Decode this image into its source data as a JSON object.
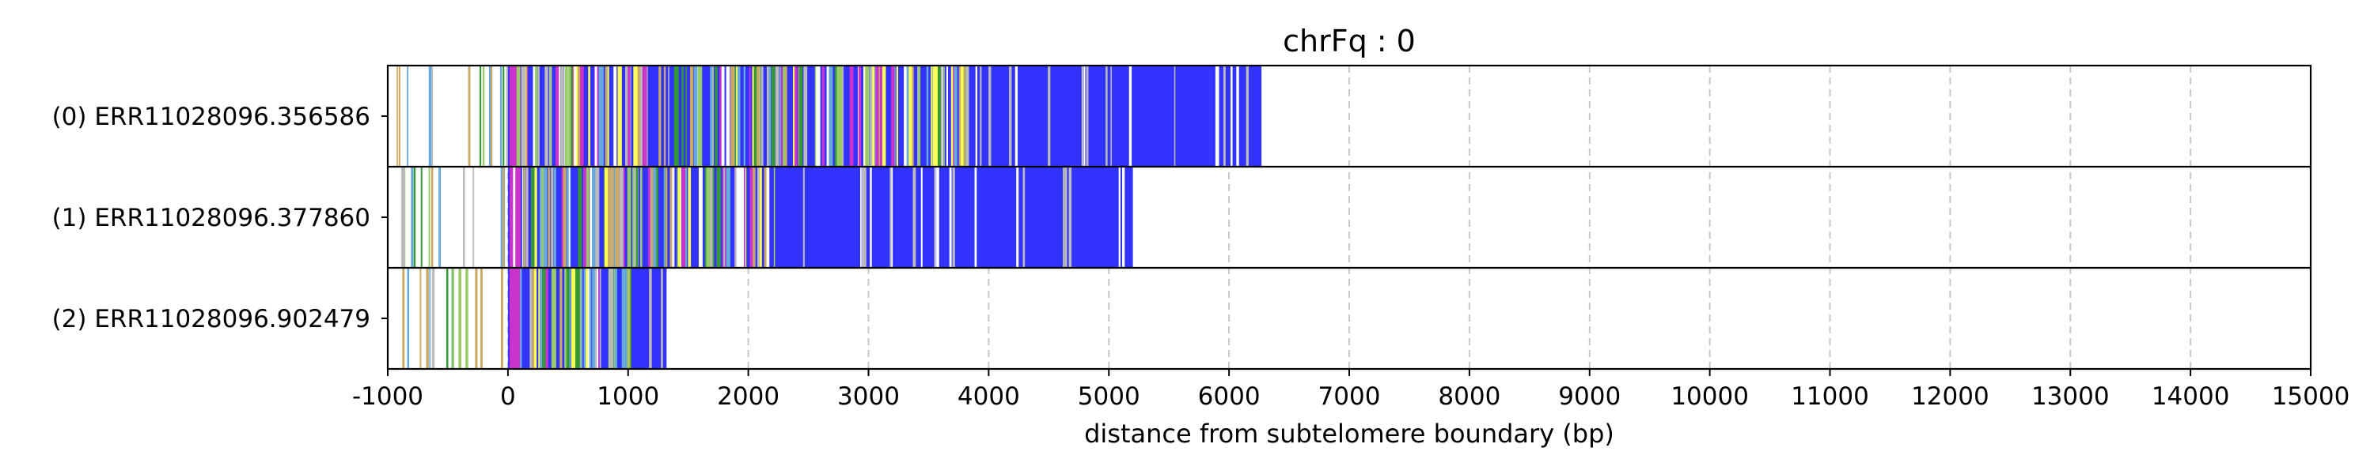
{
  "chart_data": {
    "type": "bar",
    "title": "chrFq : 0",
    "xlabel": "distance from subtelomere boundary (bp)",
    "ylabel": "",
    "xlim": [
      -1000,
      15000
    ],
    "xticks": [
      -1000,
      0,
      1000,
      2000,
      3000,
      4000,
      5000,
      6000,
      7000,
      8000,
      9000,
      10000,
      11000,
      12000,
      13000,
      14000,
      15000
    ],
    "xtick_labels": [
      "-1000",
      "0",
      "1000",
      "2000",
      "3000",
      "4000",
      "5000",
      "6000",
      "7000",
      "8000",
      "9000",
      "10000",
      "11000",
      "12000",
      "13000",
      "14000",
      "15000"
    ],
    "grid": "vertical dashed",
    "colors": {
      "tvr_background": "#3333ff",
      "magenta": "#cc33cc",
      "yellow": "#ffff55",
      "green": "#339933",
      "light_blue": "#66aadd",
      "tan": "#ccaa66",
      "gray": "#bbbbbb",
      "pale_green": "#99cc66",
      "grid": "#c8c8c8"
    },
    "reads": [
      {
        "label": "(0) ERR11028096.356586",
        "start": -1000,
        "end": 6270,
        "dense_start": 0,
        "blue_start": 3870
      },
      {
        "label": "(1) ERR11028096.377860",
        "start": -1000,
        "end": 5200,
        "dense_start": 0,
        "blue_start": 2250
      },
      {
        "label": "(2) ERR11028096.902479",
        "start": -1000,
        "end": 1320,
        "dense_start": 0,
        "blue_start": 1020
      }
    ]
  }
}
